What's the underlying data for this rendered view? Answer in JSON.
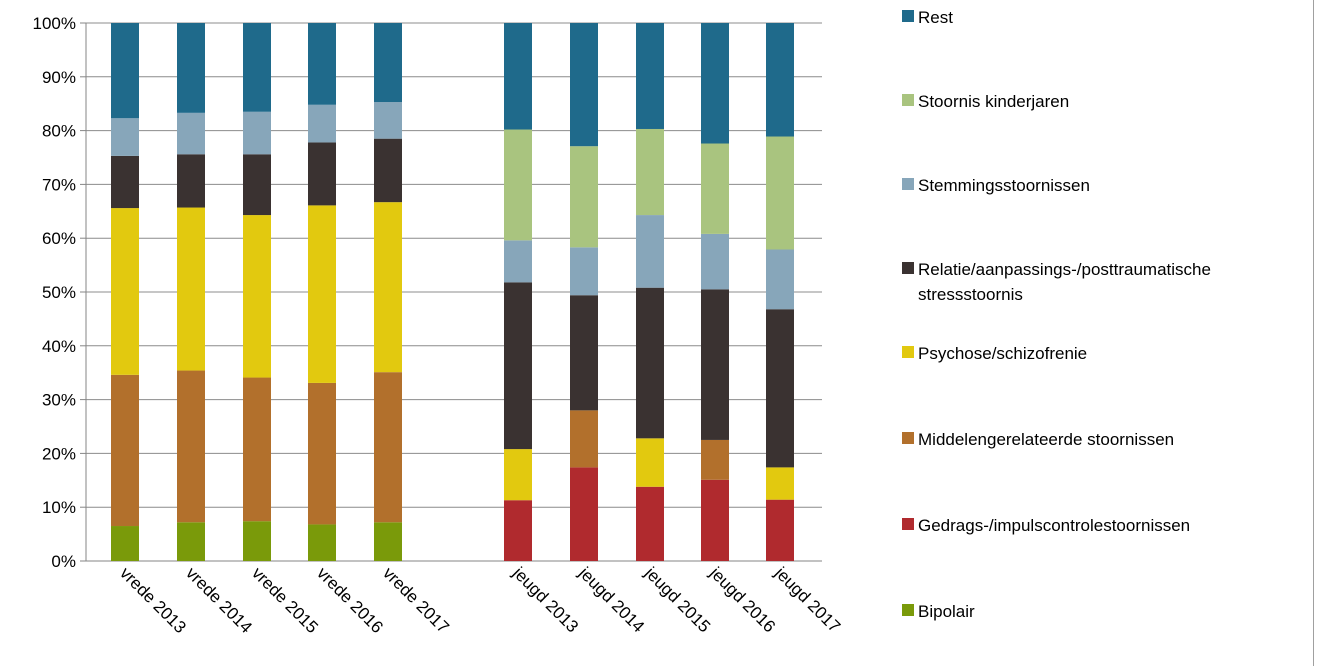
{
  "chart_data": {
    "type": "bar",
    "stacked": true,
    "normalized": true,
    "categories": [
      "vrede 2013",
      "vrede 2014",
      "vrede 2015",
      "vrede 2016",
      "vrede 2017",
      "jeugd 2013",
      "jeugd 2014",
      "jeugd 2015",
      "jeugd 2016",
      "jeugd 2017"
    ],
    "series": [
      {
        "name": "Bipolair",
        "color": "#7a9a0a",
        "values": [
          6.5,
          7.2,
          7.4,
          6.8,
          7.2,
          0,
          0,
          0,
          0,
          0
        ]
      },
      {
        "name": "Gedrags-/impulscontrolestoornissen",
        "color": "#b02a2e",
        "values": [
          0,
          0,
          0,
          0,
          0,
          11.3,
          17.4,
          13.8,
          15.1,
          11.4
        ]
      },
      {
        "name": "Middelengerelateerde stoornissen",
        "color": "#b2702c",
        "values": [
          28.1,
          28.2,
          26.7,
          26.3,
          27.9,
          0,
          10.6,
          0,
          7.4,
          0
        ]
      },
      {
        "name": "Psychose/schizofrenie",
        "color": "#e2c90f",
        "values": [
          31.0,
          30.3,
          30.2,
          33.0,
          31.6,
          9.5,
          0,
          9.0,
          0,
          6.0
        ]
      },
      {
        "name": "Relatie/aanpassings-/posttraumatische stressstoornis",
        "color": "#3a3231",
        "values": [
          9.7,
          9.9,
          11.3,
          11.7,
          11.8,
          31.0,
          21.4,
          28.0,
          28.0,
          29.4
        ]
      },
      {
        "name": "Stemmingsstoornissen",
        "color": "#87a6ba",
        "values": [
          7.0,
          7.7,
          7.9,
          7.0,
          6.8,
          7.8,
          8.9,
          13.5,
          10.3,
          11.1
        ]
      },
      {
        "name": "Stoornis kinderjaren",
        "color": "#a9c47f",
        "values": [
          0,
          0,
          0,
          0,
          0,
          20.6,
          18.8,
          16.0,
          16.8,
          21.0
        ]
      },
      {
        "name": "Rest",
        "color": "#1f6a8b",
        "values": [
          17.7,
          16.7,
          16.5,
          15.2,
          14.7,
          19.8,
          22.9,
          19.7,
          22.4,
          21.1
        ]
      }
    ],
    "ylim": [
      0,
      100
    ],
    "yticks": [
      "0%",
      "10%",
      "20%",
      "30%",
      "40%",
      "50%",
      "60%",
      "70%",
      "80%",
      "90%",
      "100%"
    ],
    "grid": true,
    "legend_position": "right"
  },
  "legend": {
    "items": [
      {
        "label": "Rest",
        "label2": "",
        "color": "#1f6a8b"
      },
      {
        "label": "Stoornis kinderjaren",
        "label2": "",
        "color": "#a9c47f"
      },
      {
        "label": "Stemmingsstoornissen",
        "label2": "",
        "color": "#87a6ba"
      },
      {
        "label": "Relatie/aanpassings-/posttraumatische",
        "label2": "stressstoornis",
        "color": "#3a3231"
      },
      {
        "label": "Psychose/schizofrenie",
        "label2": "",
        "color": "#e2c90f"
      },
      {
        "label": "Middelengerelateerde stoornissen",
        "label2": "",
        "color": "#b2702c"
      },
      {
        "label": "Gedrags-/impulscontrolestoornissen",
        "label2": "",
        "color": "#b02a2e"
      },
      {
        "label": "Bipolair",
        "label2": "",
        "color": "#7a9a0a"
      }
    ]
  }
}
